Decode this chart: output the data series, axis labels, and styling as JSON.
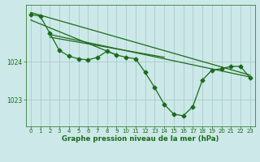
{
  "background_color": "#cce8e8",
  "grid_color": "#aacccc",
  "line_color": "#1a6b1a",
  "xlabel": "Graphe pression niveau de la mer (hPa)",
  "xlim": [
    -0.5,
    23.5
  ],
  "ylim": [
    1022.3,
    1025.5
  ],
  "yticks": [
    1023,
    1024
  ],
  "xticks": [
    0,
    1,
    2,
    3,
    4,
    5,
    6,
    7,
    8,
    9,
    10,
    11,
    12,
    13,
    14,
    15,
    16,
    17,
    18,
    19,
    20,
    21,
    22,
    23
  ],
  "main_line_x": [
    0,
    1,
    2,
    3,
    4,
    5,
    6,
    7,
    8,
    9,
    10,
    11,
    12,
    13,
    14,
    15,
    16,
    17,
    18,
    19,
    20,
    21,
    22,
    23
  ],
  "main_line_y": [
    1025.25,
    1025.2,
    1024.75,
    1024.3,
    1024.15,
    1024.08,
    1024.05,
    1024.12,
    1024.28,
    1024.18,
    1024.12,
    1024.08,
    1023.72,
    1023.32,
    1022.88,
    1022.62,
    1022.58,
    1022.82,
    1023.52,
    1023.78,
    1023.82,
    1023.88,
    1023.88,
    1023.58
  ],
  "trend1_x": [
    0,
    23
  ],
  "trend1_y": [
    1025.3,
    1023.65
  ],
  "trend2_x": [
    0,
    9
  ],
  "trend2_y": [
    1025.1,
    1024.18
  ],
  "trend3_x": [
    2,
    23
  ],
  "trend3_y": [
    1024.72,
    1023.6
  ],
  "trend4_x": [
    2,
    14
  ],
  "trend4_y": [
    1024.65,
    1024.12
  ],
  "tick_fontsize": 5.0,
  "xlabel_fontsize": 6.2,
  "marker_size": 2.5,
  "linewidth": 0.9
}
